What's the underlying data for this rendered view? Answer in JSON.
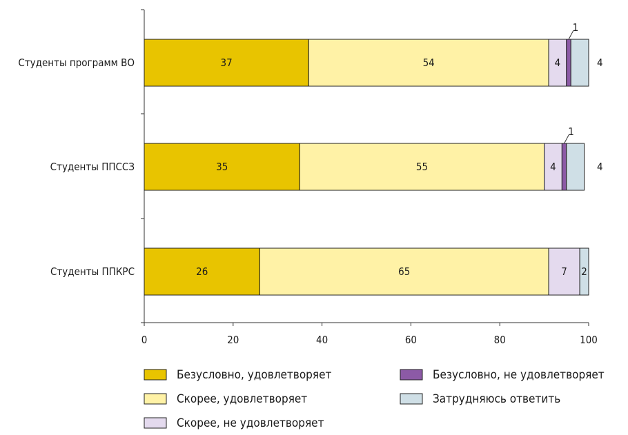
{
  "chart_data": {
    "type": "bar",
    "orientation": "horizontal",
    "stacked": true,
    "categories": [
      "Студенты программ ВО",
      "Студенты ППССЗ",
      "Студенты ППКРС"
    ],
    "series": [
      {
        "name": "Безусловно, удовлетворяет",
        "color": "#E8C400",
        "values": [
          37,
          35,
          26
        ]
      },
      {
        "name": "Скорее, удовлетворяет",
        "color": "#FFF2A6",
        "values": [
          54,
          55,
          65
        ]
      },
      {
        "name": "Скорее, не удовлетворяет",
        "color": "#E4DAEE",
        "values": [
          4,
          4,
          7
        ]
      },
      {
        "name": "Безусловно, не удовлетворяет",
        "color": "#8C5AA6",
        "values": [
          1,
          1,
          0
        ]
      },
      {
        "name": "Затрудняюсь ответить",
        "color": "#CFDFE6",
        "values": [
          4,
          4,
          2
        ]
      }
    ],
    "xlim": [
      0,
      100
    ],
    "xticks": [
      0,
      20,
      40,
      60,
      80,
      100
    ],
    "grid": false,
    "legend_position": "bottom"
  }
}
